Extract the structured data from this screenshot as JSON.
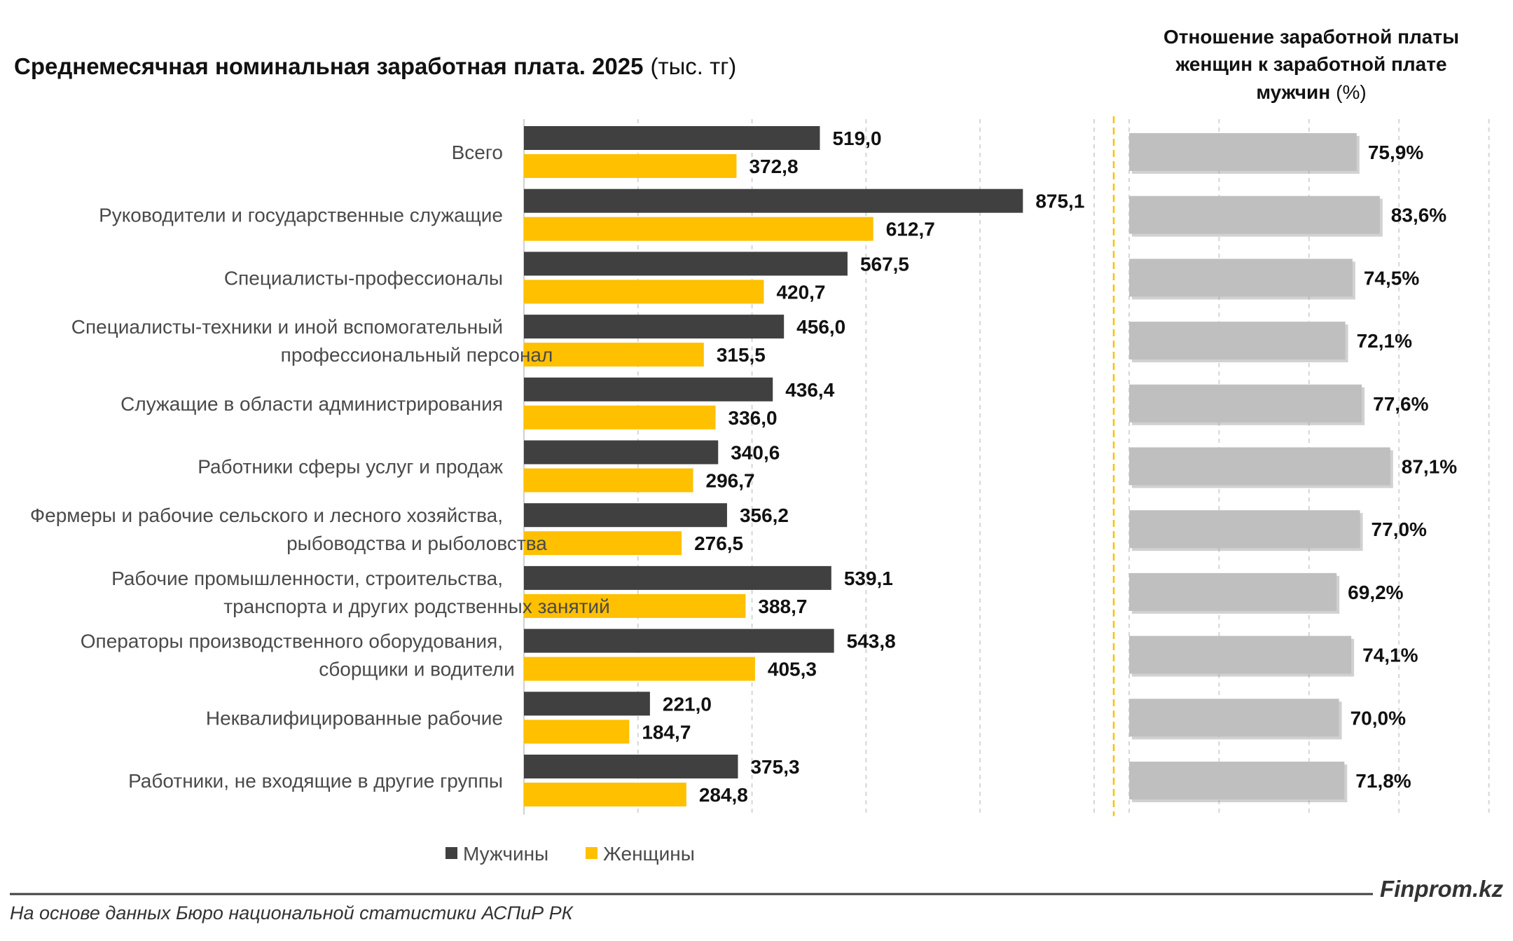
{
  "chart_data": [
    {
      "type": "bar",
      "orientation": "horizontal",
      "title": "Среднемесячная номинальная заработная плата. 2025",
      "unit": "(тыс. тг)",
      "categories": [
        [
          "Всего"
        ],
        [
          "Руководители и государственные служащие"
        ],
        [
          "Специалисты-профессионалы"
        ],
        [
          "Специалисты-техники и иной вспомогательный",
          "профессиональный персонал"
        ],
        [
          "Служащие в области администрирования"
        ],
        [
          "Работники сферы услуг и продаж"
        ],
        [
          "Фермеры и рабочие сельского и лесного хозяйства,",
          "рыбоводства и рыболовства"
        ],
        [
          "Рабочие промышленности, строительства,",
          "транспорта и других родственных занятий"
        ],
        [
          "Операторы производственного оборудования,",
          "сборщики и водители"
        ],
        [
          "Неквалифицированные рабочие"
        ],
        [
          "Работники, не входящие в другие группы"
        ]
      ],
      "series": [
        {
          "name": "Мужчины",
          "color": "#404040",
          "values": [
            519.0,
            875.1,
            567.5,
            456.0,
            436.4,
            340.6,
            356.2,
            539.1,
            543.8,
            221.0,
            375.3
          ],
          "labels": [
            "519,0",
            "875,1",
            "567,5",
            "456,0",
            "436,4",
            "340,6",
            "356,2",
            "539,1",
            "543,8",
            "221,0",
            "375,3"
          ]
        },
        {
          "name": "Женщины",
          "color": "#FFC000",
          "values": [
            372.8,
            612.7,
            420.7,
            315.5,
            336.0,
            296.7,
            276.5,
            388.7,
            405.3,
            184.7,
            284.8
          ],
          "labels": [
            "372,8",
            "612,7",
            "420,7",
            "315,5",
            "336,0",
            "296,7",
            "276,5",
            "388,7",
            "405,3",
            "184,7",
            "284,8"
          ]
        }
      ],
      "xlim": [
        0,
        1000
      ],
      "grid": true,
      "legend": "bottom"
    },
    {
      "type": "bar",
      "orientation": "horizontal",
      "title_lines": [
        "Отношение заработной платы",
        "женщин к заработной плате"
      ],
      "title_last_bold": "мужчин",
      "title_last_plain": "(%)",
      "series": [
        {
          "name": "",
          "color": "#BFBFBF",
          "values": [
            75.9,
            83.6,
            74.5,
            72.1,
            77.6,
            87.1,
            77.0,
            69.2,
            74.1,
            70.0,
            71.8
          ],
          "labels": [
            "75,9%",
            "83,6%",
            "74,5%",
            "72,1%",
            "77,6%",
            "87,1%",
            "77,0%",
            "69,2%",
            "74,1%",
            "70,0%",
            "71,8%"
          ]
        }
      ],
      "xlim": [
        0,
        100
      ],
      "grid": true
    }
  ],
  "footer": {
    "source": "На основе данных Бюро национальной статистики АСПиР РК",
    "brand": "Finprom.kz"
  }
}
